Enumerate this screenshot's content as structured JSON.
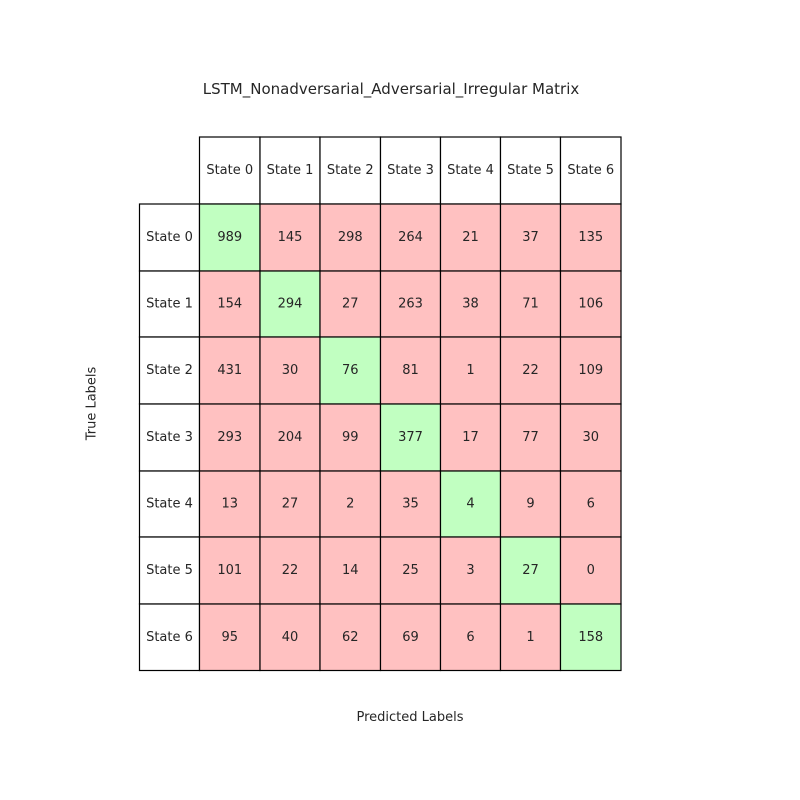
{
  "chart_data": {
    "type": "table",
    "title": "LSTM_Nonadversarial_Adversarial_Irregular Matrix",
    "xlabel": "Predicted Labels",
    "ylabel": "True Labels",
    "column_labels": [
      "State 0",
      "State 1",
      "State 2",
      "State 3",
      "State 4",
      "State 5",
      "State 6"
    ],
    "row_labels": [
      "State 0",
      "State 1",
      "State 2",
      "State 3",
      "State 4",
      "State 5",
      "State 6"
    ],
    "values": [
      [
        989,
        145,
        298,
        264,
        21,
        37,
        135
      ],
      [
        154,
        294,
        27,
        263,
        38,
        71,
        106
      ],
      [
        431,
        30,
        76,
        81,
        1,
        22,
        109
      ],
      [
        293,
        204,
        99,
        377,
        17,
        77,
        30
      ],
      [
        13,
        27,
        2,
        35,
        4,
        9,
        6
      ],
      [
        101,
        22,
        14,
        25,
        3,
        27,
        0
      ],
      [
        95,
        40,
        62,
        69,
        6,
        1,
        158
      ]
    ],
    "colors": {
      "diagonal": "#c1ffc1",
      "off_diagonal": "#ffc1c1",
      "header": "#ffffff",
      "border": "#000000"
    }
  }
}
